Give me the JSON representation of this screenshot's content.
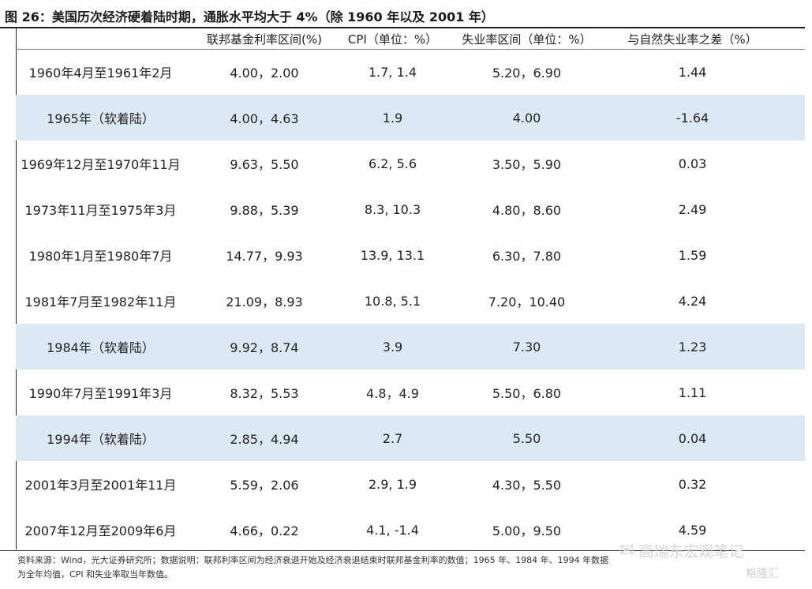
{
  "title": "图 26：美国历次经济硬着陆时期，通胀水平均大于 4%（除 1960 年以及 2001 年）",
  "headers": [
    "",
    "联邦基金利率区间(%)",
    "CPI（单位：%）",
    "失业率区间（单位：%）",
    "与自然失业率之差（%）"
  ],
  "rows": [
    {
      "period": "1960年4月至1961年2月",
      "fed": "4.00，2.00",
      "cpi": "1.7, 1.4",
      "unemp": "5.20，6.90",
      "diff": "1.44",
      "shaded": false
    },
    {
      "period": "1965年（软着陆）",
      "fed": "4.00，4.63",
      "cpi": "1.9",
      "unemp": "4.00",
      "diff": "-1.64",
      "shaded": true
    },
    {
      "period": "1969年12月至1970年11月",
      "fed": "9.63，5.50",
      "cpi": "6.2, 5.6",
      "unemp": "3.50，5.90",
      "diff": "0.03",
      "shaded": false
    },
    {
      "period": "1973年11月至1975年3月",
      "fed": "9.88，5.39",
      "cpi": "8.3, 10.3",
      "unemp": "4.80，8.60",
      "diff": "2.49",
      "shaded": false
    },
    {
      "period": "1980年1月至1980年7月",
      "fed": "14.77，9.93",
      "cpi": "13.9, 13.1",
      "unemp": "6.30，7.80",
      "diff": "1.59",
      "shaded": false
    },
    {
      "period": "1981年7月至1982年11月",
      "fed": "21.09，8.93",
      "cpi": "10.8, 5.1",
      "unemp": "7.20，10.40",
      "diff": "4.24",
      "shaded": false
    },
    {
      "period": "1984年（软着陆）",
      "fed": "9.92，8.74",
      "cpi": "3.9",
      "unemp": "7.30",
      "diff": "1.23",
      "shaded": true
    },
    {
      "period": "1990年7月至1991年3月",
      "fed": "8.32，5.53",
      "cpi": "4.8，4.9",
      "unemp": "5.50，6.80",
      "diff": "1.11",
      "shaded": false
    },
    {
      "period": "1994年（软着陆）",
      "fed": "2.85，4.94",
      "cpi": "2.7",
      "unemp": "5.50",
      "diff": "0.04",
      "shaded": true
    },
    {
      "period": "2001年3月至2001年11月",
      "fed": "5.59，2.06",
      "cpi": "2.9, 1.9",
      "unemp": "4.30，5.50",
      "diff": "0.32",
      "shaded": false
    },
    {
      "period": "2007年12月至2009年6月",
      "fed": "4.66，0.22",
      "cpi": "4.1, -1.4",
      "unemp": "5.00，9.50",
      "diff": "4.59",
      "shaded": false
    }
  ],
  "footnote": "资料来源：Wind，光大证券研究所；数据说明：联邦利率区间为经济衰退开始及经济衰退结束时联邦基金利率的数值；1965 年、1984 年、1994 年数据为全年均值，CPI 和失业率取当年数值。",
  "watermark": "高瑞东宏观笔记",
  "logo": "格隆汇"
}
